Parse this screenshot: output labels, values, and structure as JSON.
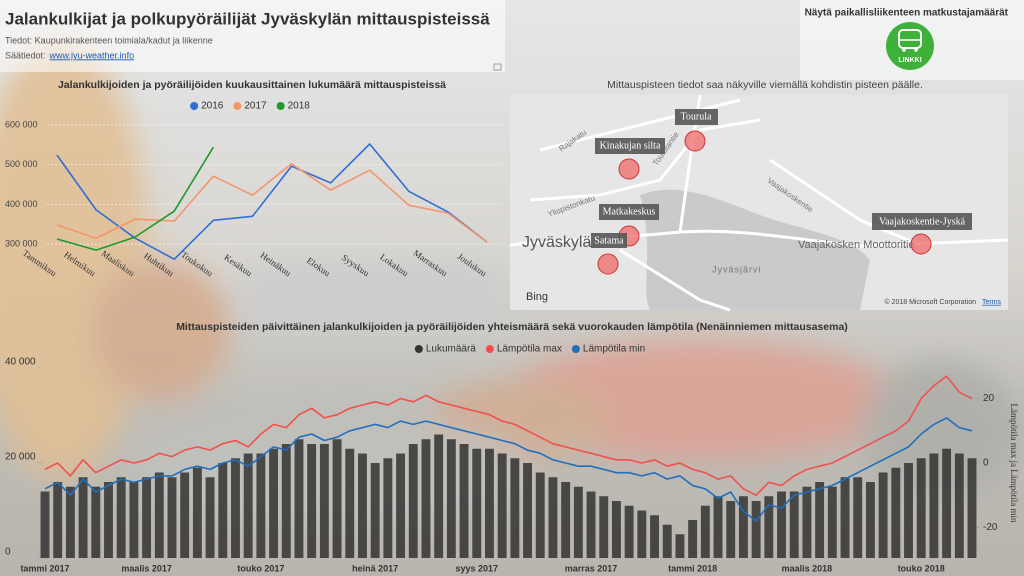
{
  "header": {
    "title": "Jalankulkijat ja polkupyöräilijät Jyväskylän mittauspisteissä",
    "source": "Tiedot: Kaupunkirakenteen toimiala/kadut ja liikenne",
    "weather_label": "Säätiedot:",
    "weather_link": "www.jyu-weather.info"
  },
  "link_panel": {
    "title": "Näytä paikallisliikenteen matkustajamäärät",
    "logo_label": "LINKKI"
  },
  "map": {
    "instruction": "Mittauspisteen tiedot saa näkyville viemällä kohdistin pisteen päälle.",
    "points": [
      {
        "label": "Tourula"
      },
      {
        "label": "Kinakujan silta"
      },
      {
        "label": "Matkakeskus"
      },
      {
        "label": "Satama"
      },
      {
        "label": "Vaajakoskentie-Jyskä"
      }
    ],
    "place_labels": [
      "Jyväskylä",
      "Jyväsjärvi",
      "Vaajakosken Moottoritie",
      "Rajakatu",
      "Yliopistonkatu",
      "Vaajakoskentie",
      "Tourulantie"
    ],
    "provider": "Bing",
    "copyright": "© 2018 Microsoft Corporation",
    "terms": "Terms"
  },
  "chart_data": [
    {
      "type": "line",
      "title": "Jalankulkijoiden ja pyöräilijöiden kuukausittainen lukumäärä mittauspisteissä",
      "categories": [
        "Tammikuu",
        "Helmikuu",
        "Maaliskuu",
        "Huhtikuu",
        "Toukokuu",
        "Kesäkuu",
        "Heinäkuu",
        "Elokuu",
        "Syyskuu",
        "Lokakuu",
        "Marraskuu",
        "Joulukuu"
      ],
      "series": [
        {
          "name": "2016",
          "color": "#2f6fd6",
          "values": [
            524000,
            386000,
            315000,
            262000,
            360000,
            370000,
            496000,
            454000,
            552000,
            433000,
            381000,
            305000
          ]
        },
        {
          "name": "2017",
          "color": "#f4956a",
          "values": [
            348000,
            315000,
            363000,
            358000,
            471000,
            423000,
            502000,
            436000,
            486000,
            398000,
            378000,
            305000
          ]
        },
        {
          "name": "2018",
          "color": "#1e9a2d",
          "values": [
            313000,
            285000,
            318000,
            383000,
            544000,
            null,
            null,
            null,
            null,
            null,
            null,
            null
          ]
        }
      ],
      "ylim": [
        250000,
        650000
      ],
      "yticks": [
        {
          "value": 300000,
          "label": "300 000"
        },
        {
          "value": 400000,
          "label": "400 000"
        },
        {
          "value": 500000,
          "label": "500 000"
        },
        {
          "value": 600000,
          "label": "600 000"
        }
      ],
      "grid": true,
      "legend": "top"
    },
    {
      "type": "combo",
      "title": "Mittauspisteiden päivittäinen jalankulkijoiden ja pyöräilijöiden yhteismäärä sekä vuorokauden lämpötila (Nenäinniemen mittausasema)",
      "categories": [
        "tammi 2017",
        null,
        null,
        null,
        null,
        null,
        null,
        null,
        "maalis 2017",
        null,
        null,
        null,
        null,
        null,
        null,
        null,
        null,
        "touko 2017",
        null,
        null,
        null,
        null,
        null,
        null,
        null,
        null,
        "heinä 2017",
        null,
        null,
        null,
        null,
        null,
        null,
        null,
        "syys 2017",
        null,
        null,
        null,
        null,
        null,
        null,
        null,
        null,
        "marras 2017",
        null,
        null,
        null,
        null,
        null,
        null,
        null,
        "tammi 2018",
        null,
        null,
        null,
        null,
        null,
        null,
        null,
        null,
        "maalis 2018",
        null,
        null,
        null,
        null,
        null,
        null,
        null,
        null,
        "touko 2018",
        null,
        null,
        null,
        null
      ],
      "series": [
        {
          "name": "Lukumäärä",
          "type": "bar",
          "color": "#333333",
          "values": [
            14000,
            16000,
            15000,
            17000,
            15000,
            16000,
            17000,
            16000,
            17000,
            18000,
            17000,
            18000,
            19000,
            17000,
            20000,
            21000,
            22000,
            22000,
            23000,
            24000,
            25000,
            24000,
            24000,
            25000,
            23000,
            22000,
            20000,
            21000,
            22000,
            24000,
            25000,
            26000,
            25000,
            24000,
            23000,
            23000,
            22000,
            21000,
            20000,
            18000,
            17000,
            16000,
            15000,
            14000,
            13000,
            12000,
            11000,
            10000,
            9000,
            7000,
            5000,
            8000,
            11000,
            13000,
            12000,
            13000,
            12000,
            13000,
            14000,
            14000,
            15000,
            16000,
            15000,
            17000,
            17000,
            16000,
            18000,
            19000,
            20000,
            21000,
            22000,
            23000,
            22000,
            21000
          ]
        },
        {
          "name": "Lämpötila max",
          "type": "line",
          "color": "#f0504f",
          "axis": "y2",
          "values": [
            -2,
            0,
            -4,
            1,
            -3,
            -1,
            1,
            0,
            1,
            3,
            2,
            4,
            5,
            4,
            6,
            7,
            5,
            9,
            12,
            11,
            15,
            17,
            14,
            15,
            17,
            18,
            19,
            18,
            20,
            19,
            21,
            19,
            18,
            17,
            16,
            15,
            13,
            12,
            10,
            8,
            6,
            5,
            4,
            3,
            2,
            1,
            1,
            0,
            1,
            -1,
            0,
            -2,
            -3,
            -5,
            -4,
            -8,
            -10,
            -6,
            -7,
            -4,
            -2,
            -1,
            0,
            2,
            4,
            6,
            8,
            10,
            13,
            20,
            24,
            27,
            22,
            20
          ]
        },
        {
          "name": "Lämpötila min",
          "type": "line",
          "color": "#1f6fbf",
          "axis": "y2",
          "values": [
            -8,
            -6,
            -10,
            -5,
            -9,
            -7,
            -5,
            -6,
            -5,
            -4,
            -4,
            -2,
            -1,
            -2,
            0,
            1,
            -1,
            2,
            5,
            4,
            8,
            9,
            7,
            8,
            10,
            11,
            12,
            11,
            13,
            12,
            13,
            12,
            11,
            10,
            9,
            8,
            7,
            6,
            4,
            3,
            1,
            0,
            -1,
            -1,
            -2,
            -3,
            -3,
            -4,
            -3,
            -5,
            -4,
            -7,
            -8,
            -11,
            -9,
            -15,
            -18,
            -13,
            -14,
            -10,
            -9,
            -8,
            -7,
            -5,
            -3,
            -1,
            1,
            3,
            5,
            9,
            12,
            14,
            11,
            10
          ]
        }
      ],
      "ylim": [
        0,
        40000
      ],
      "yticks": [
        0,
        {
          "value": 20000,
          "label": "20 000"
        },
        {
          "value": 40000,
          "label": "40 000"
        }
      ],
      "y2lim": [
        -29.5,
        29.5
      ],
      "y2ticks": [
        -20,
        0,
        20
      ],
      "y2label": "Lämpötila max ja Lämpötila min",
      "legend": "top"
    }
  ]
}
